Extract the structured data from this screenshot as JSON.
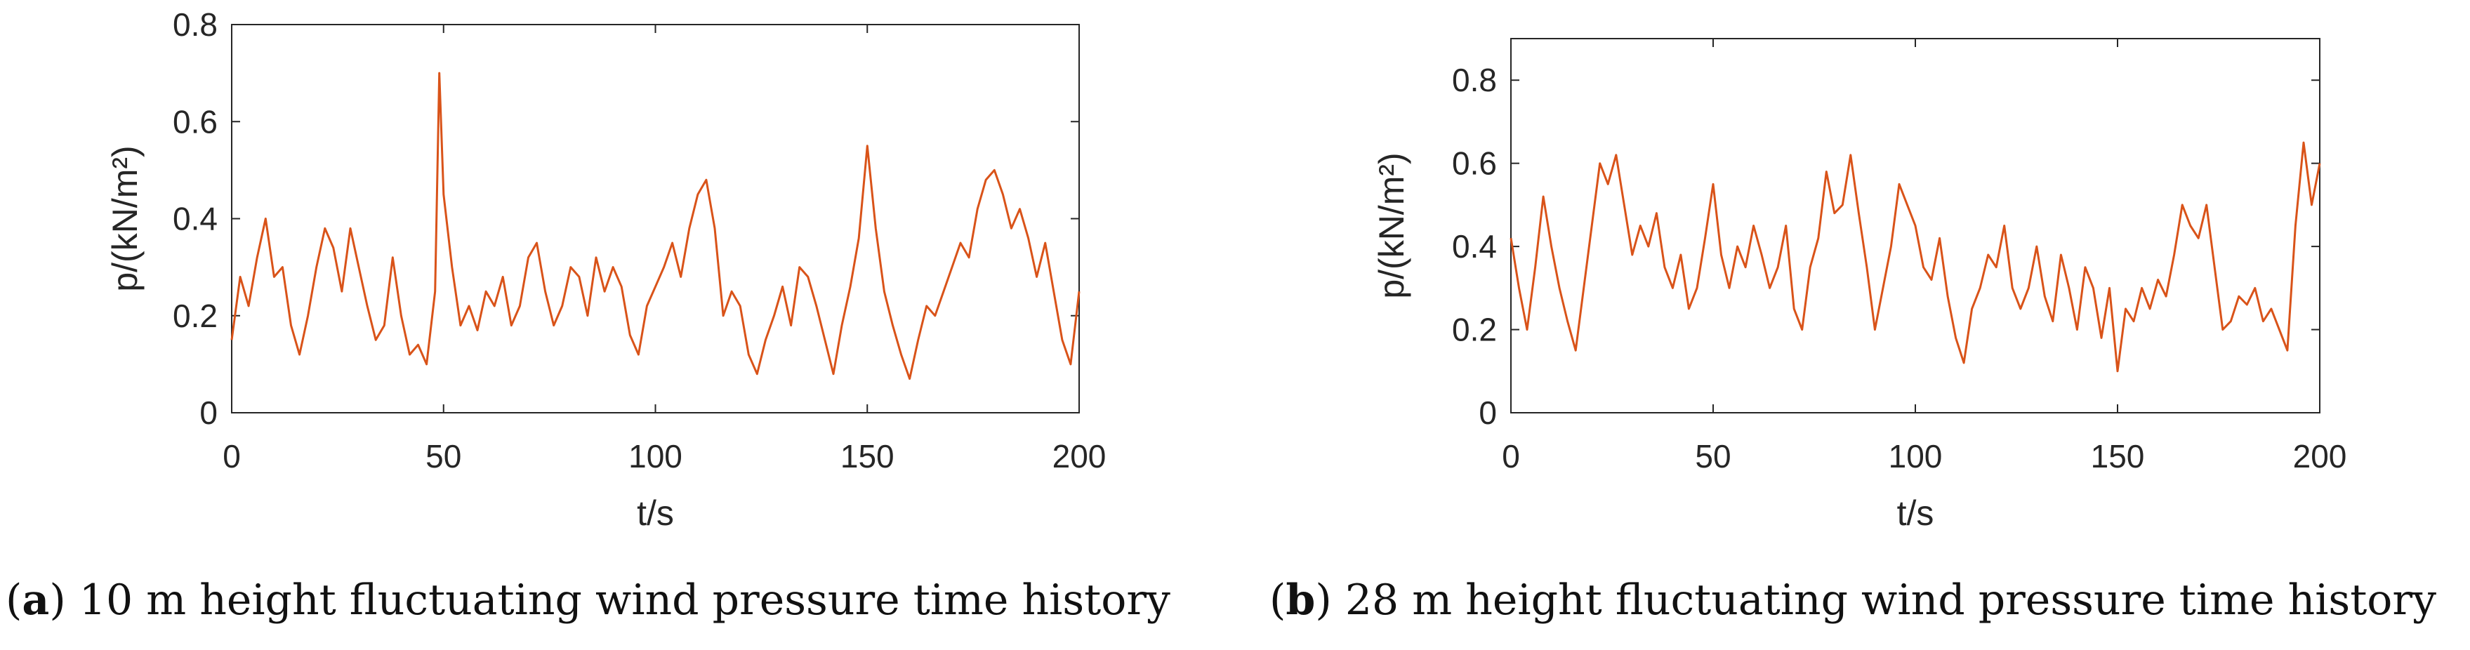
{
  "chart_data": [
    {
      "type": "line",
      "xlabel": "t/s",
      "ylabel": "p/(kN/m²)",
      "xlim": [
        0,
        200
      ],
      "ylim": [
        0,
        0.8
      ],
      "xticks": [
        "0",
        "50",
        "100",
        "150",
        "200"
      ],
      "yticks": [
        "0",
        "0.2",
        "0.4",
        "0.6",
        "0.8"
      ],
      "grid": false,
      "line_color": "#D95319",
      "caption": {
        "letter": "a",
        "text": " 10 m height fluctuating wind pressure time history"
      },
      "x": [
        0,
        2,
        4,
        6,
        8,
        10,
        12,
        14,
        16,
        18,
        20,
        22,
        24,
        26,
        28,
        30,
        32,
        34,
        36,
        38,
        40,
        42,
        44,
        46,
        48,
        49,
        50,
        52,
        54,
        56,
        58,
        60,
        62,
        64,
        66,
        68,
        70,
        72,
        74,
        76,
        78,
        80,
        82,
        84,
        86,
        88,
        90,
        92,
        94,
        96,
        98,
        100,
        102,
        104,
        106,
        108,
        110,
        112,
        114,
        116,
        118,
        120,
        122,
        124,
        126,
        128,
        130,
        132,
        134,
        136,
        138,
        140,
        142,
        144,
        146,
        148,
        150,
        152,
        154,
        156,
        158,
        160,
        162,
        164,
        166,
        168,
        170,
        172,
        174,
        176,
        178,
        180,
        182,
        184,
        186,
        188,
        190,
        192,
        194,
        196,
        198,
        200
      ],
      "y": [
        0.15,
        0.28,
        0.22,
        0.32,
        0.4,
        0.28,
        0.3,
        0.18,
        0.12,
        0.2,
        0.3,
        0.38,
        0.34,
        0.25,
        0.38,
        0.3,
        0.22,
        0.15,
        0.18,
        0.32,
        0.2,
        0.12,
        0.14,
        0.1,
        0.25,
        0.7,
        0.45,
        0.3,
        0.18,
        0.22,
        0.17,
        0.25,
        0.22,
        0.28,
        0.18,
        0.22,
        0.32,
        0.35,
        0.25,
        0.18,
        0.22,
        0.3,
        0.28,
        0.2,
        0.32,
        0.25,
        0.3,
        0.26,
        0.16,
        0.12,
        0.22,
        0.26,
        0.3,
        0.35,
        0.28,
        0.38,
        0.45,
        0.48,
        0.38,
        0.2,
        0.25,
        0.22,
        0.12,
        0.08,
        0.15,
        0.2,
        0.26,
        0.18,
        0.3,
        0.28,
        0.22,
        0.15,
        0.08,
        0.18,
        0.26,
        0.36,
        0.55,
        0.38,
        0.25,
        0.18,
        0.12,
        0.07,
        0.15,
        0.22,
        0.2,
        0.25,
        0.3,
        0.35,
        0.32,
        0.42,
        0.48,
        0.5,
        0.45,
        0.38,
        0.42,
        0.36,
        0.28,
        0.35,
        0.25,
        0.15,
        0.1,
        0.25
      ]
    },
    {
      "type": "line",
      "xlabel": "t/s",
      "ylabel": "p/(kN/m²)",
      "xlim": [
        0,
        200
      ],
      "ylim": [
        0,
        0.9
      ],
      "xticks": [
        "0",
        "50",
        "100",
        "150",
        "200"
      ],
      "yticks": [
        "0",
        "0.2",
        "0.4",
        "0.6",
        "0.8"
      ],
      "grid": false,
      "line_color": "#D95319",
      "caption": {
        "letter": "b",
        "text": " 28 m height fluctuating wind pressure time history"
      },
      "x": [
        0,
        2,
        4,
        6,
        8,
        10,
        12,
        14,
        16,
        18,
        20,
        22,
        24,
        26,
        28,
        30,
        32,
        34,
        36,
        38,
        40,
        42,
        44,
        46,
        48,
        50,
        52,
        54,
        56,
        58,
        60,
        62,
        64,
        66,
        68,
        70,
        72,
        74,
        76,
        78,
        80,
        82,
        84,
        86,
        88,
        90,
        92,
        94,
        96,
        98,
        100,
        102,
        104,
        106,
        108,
        110,
        112,
        114,
        116,
        118,
        120,
        122,
        124,
        126,
        128,
        130,
        132,
        134,
        136,
        138,
        140,
        142,
        144,
        146,
        148,
        150,
        152,
        154,
        156,
        158,
        160,
        162,
        164,
        166,
        168,
        170,
        172,
        174,
        176,
        178,
        180,
        182,
        184,
        186,
        188,
        190,
        192,
        194,
        196,
        198,
        200
      ],
      "y": [
        0.42,
        0.3,
        0.2,
        0.35,
        0.52,
        0.4,
        0.3,
        0.22,
        0.15,
        0.3,
        0.45,
        0.6,
        0.55,
        0.62,
        0.5,
        0.38,
        0.45,
        0.4,
        0.48,
        0.35,
        0.3,
        0.38,
        0.25,
        0.3,
        0.42,
        0.55,
        0.38,
        0.3,
        0.4,
        0.35,
        0.45,
        0.38,
        0.3,
        0.35,
        0.45,
        0.25,
        0.2,
        0.35,
        0.42,
        0.58,
        0.48,
        0.5,
        0.62,
        0.48,
        0.35,
        0.2,
        0.3,
        0.4,
        0.55,
        0.5,
        0.45,
        0.35,
        0.32,
        0.42,
        0.28,
        0.18,
        0.12,
        0.25,
        0.3,
        0.38,
        0.35,
        0.45,
        0.3,
        0.25,
        0.3,
        0.4,
        0.28,
        0.22,
        0.38,
        0.3,
        0.2,
        0.35,
        0.3,
        0.18,
        0.3,
        0.1,
        0.25,
        0.22,
        0.3,
        0.25,
        0.32,
        0.28,
        0.38,
        0.5,
        0.45,
        0.42,
        0.5,
        0.35,
        0.2,
        0.22,
        0.28,
        0.26,
        0.3,
        0.22,
        0.25,
        0.2,
        0.15,
        0.45,
        0.65,
        0.5,
        0.6
      ]
    }
  ]
}
